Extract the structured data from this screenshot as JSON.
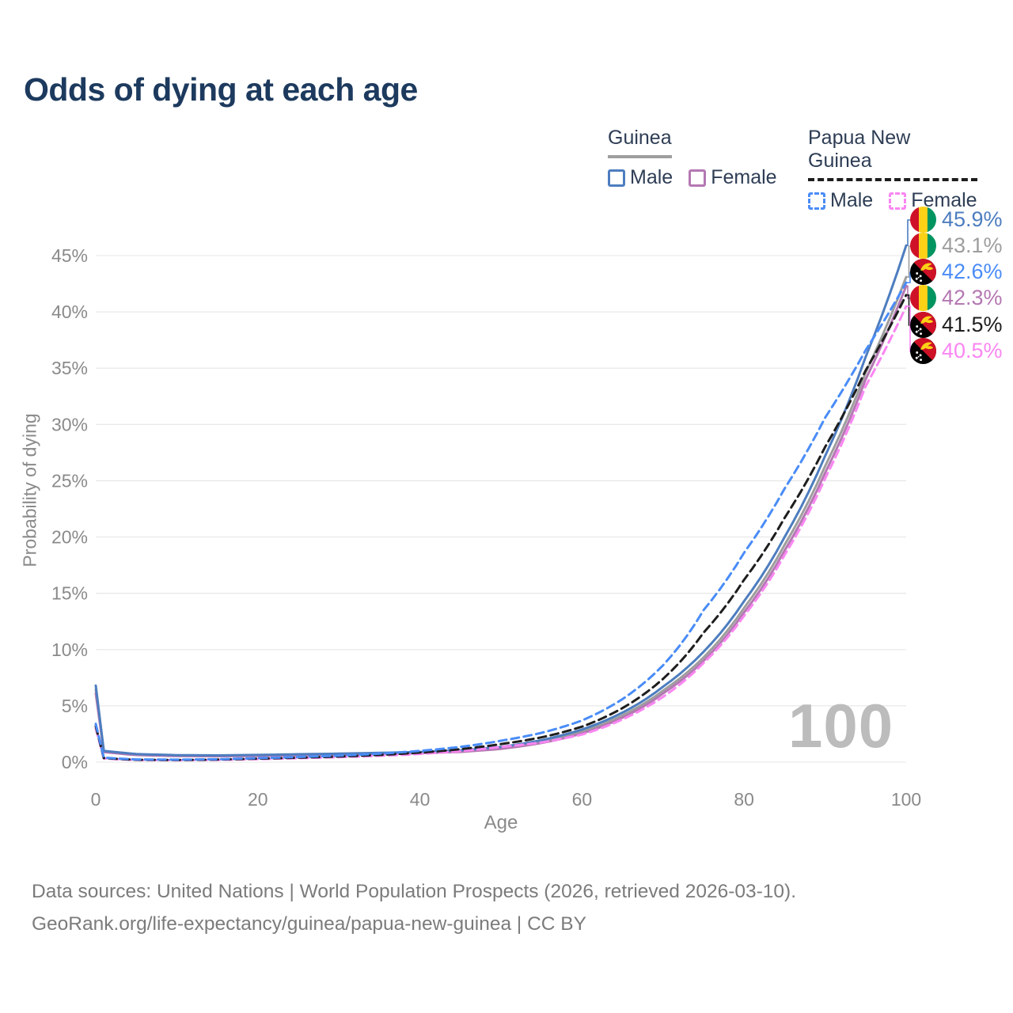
{
  "title": "Odds of dying at each age",
  "watermark": "100",
  "legend": {
    "groups": [
      {
        "label": "Guinea",
        "underline_color": "#9e9e9e",
        "underline_style": "solid",
        "items": [
          {
            "label": "Male",
            "color": "#4d7dbf",
            "dashed": false
          },
          {
            "label": "Female",
            "color": "#b478b2",
            "dashed": false
          }
        ]
      },
      {
        "label": "Papua New Guinea",
        "underline_color": "#1e1e1e",
        "underline_style": "dashed",
        "items": [
          {
            "label": "Male",
            "color": "#4a8cf7",
            "dashed": true
          },
          {
            "label": "Female",
            "color": "#fa86f2",
            "dashed": true
          }
        ]
      }
    ]
  },
  "footer": {
    "line1": "Data sources: United Nations | World Population Prospects (2026, retrieved 2026-03-10).",
    "line2": "GeoRank.org/life-expectancy/guinea/papua-new-guinea | CC BY"
  },
  "chart_data": {
    "type": "line",
    "title": "Odds of dying at each age",
    "xlabel": "Age",
    "ylabel": "Probability of dying",
    "xlim": [
      0,
      100
    ],
    "ylim": [
      0,
      48
    ],
    "grid": true,
    "x_ticks": [
      0,
      20,
      40,
      60,
      80,
      100
    ],
    "y_ticks": [
      {
        "value": 0,
        "label": "0%"
      },
      {
        "value": 5,
        "label": "5%"
      },
      {
        "value": 10,
        "label": "10%"
      },
      {
        "value": 15,
        "label": "15%"
      },
      {
        "value": 20,
        "label": "20%"
      },
      {
        "value": 25,
        "label": "25%"
      },
      {
        "value": 30,
        "label": "30%"
      },
      {
        "value": 35,
        "label": "35%"
      },
      {
        "value": 40,
        "label": "40%"
      },
      {
        "value": 45,
        "label": "45%"
      }
    ],
    "series": [
      {
        "name": "Guinea Male",
        "country": "Guinea",
        "flag": "guinea",
        "color": "#4d7dbf",
        "dashed": false,
        "end_value_pct": 45.9,
        "end_label": "45.9%",
        "points": [
          [
            0,
            6.8
          ],
          [
            1,
            1.0
          ],
          [
            5,
            0.72
          ],
          [
            10,
            0.62
          ],
          [
            15,
            0.6
          ],
          [
            20,
            0.64
          ],
          [
            25,
            0.7
          ],
          [
            30,
            0.75
          ],
          [
            35,
            0.82
          ],
          [
            40,
            0.9
          ],
          [
            45,
            1.05
          ],
          [
            50,
            1.35
          ],
          [
            55,
            1.95
          ],
          [
            60,
            2.9
          ],
          [
            65,
            4.4
          ],
          [
            70,
            6.7
          ],
          [
            75,
            9.8
          ],
          [
            80,
            14.3
          ],
          [
            85,
            20.0
          ],
          [
            90,
            27.2
          ],
          [
            95,
            36.0
          ],
          [
            100,
            45.9
          ]
        ]
      },
      {
        "name": "Guinea",
        "country": "Guinea",
        "flag": "guinea",
        "color": "#9e9e9e",
        "dashed": false,
        "end_value_pct": 43.1,
        "end_label": "43.1%",
        "points": [
          [
            0,
            6.45
          ],
          [
            1,
            0.95
          ],
          [
            5,
            0.68
          ],
          [
            10,
            0.58
          ],
          [
            15,
            0.56
          ],
          [
            20,
            0.6
          ],
          [
            25,
            0.65
          ],
          [
            30,
            0.7
          ],
          [
            35,
            0.77
          ],
          [
            40,
            0.85
          ],
          [
            45,
            0.98
          ],
          [
            50,
            1.27
          ],
          [
            55,
            1.82
          ],
          [
            60,
            2.7
          ],
          [
            65,
            4.15
          ],
          [
            70,
            6.35
          ],
          [
            75,
            9.3
          ],
          [
            80,
            13.7
          ],
          [
            85,
            19.3
          ],
          [
            90,
            26.3
          ],
          [
            95,
            34.6
          ],
          [
            100,
            43.1
          ]
        ]
      },
      {
        "name": "Papua New Guinea Male",
        "country": "Papua New Guinea",
        "flag": "png",
        "color": "#4a8cf7",
        "dashed": true,
        "end_value_pct": 42.6,
        "end_label": "42.6%",
        "points": [
          [
            0,
            3.4
          ],
          [
            1,
            0.4
          ],
          [
            5,
            0.24
          ],
          [
            10,
            0.22
          ],
          [
            15,
            0.26
          ],
          [
            20,
            0.36
          ],
          [
            25,
            0.46
          ],
          [
            30,
            0.58
          ],
          [
            35,
            0.75
          ],
          [
            40,
            1.0
          ],
          [
            45,
            1.35
          ],
          [
            50,
            1.9
          ],
          [
            55,
            2.6
          ],
          [
            60,
            3.7
          ],
          [
            65,
            5.6
          ],
          [
            70,
            8.6
          ],
          [
            75,
            13.5
          ],
          [
            80,
            18.6
          ],
          [
            85,
            24.3
          ],
          [
            90,
            30.6
          ],
          [
            95,
            36.6
          ],
          [
            100,
            42.6
          ]
        ]
      },
      {
        "name": "Guinea Female",
        "country": "Guinea",
        "flag": "guinea",
        "color": "#b478b2",
        "dashed": false,
        "end_value_pct": 42.3,
        "end_label": "42.3%",
        "points": [
          [
            0,
            6.1
          ],
          [
            1,
            0.9
          ],
          [
            5,
            0.63
          ],
          [
            10,
            0.54
          ],
          [
            15,
            0.52
          ],
          [
            20,
            0.55
          ],
          [
            25,
            0.6
          ],
          [
            30,
            0.65
          ],
          [
            35,
            0.71
          ],
          [
            40,
            0.79
          ],
          [
            45,
            0.91
          ],
          [
            50,
            1.18
          ],
          [
            55,
            1.7
          ],
          [
            60,
            2.55
          ],
          [
            65,
            3.95
          ],
          [
            70,
            6.1
          ],
          [
            75,
            9.0
          ],
          [
            80,
            13.3
          ],
          [
            85,
            18.8
          ],
          [
            90,
            25.7
          ],
          [
            95,
            34.0
          ],
          [
            100,
            42.3
          ]
        ]
      },
      {
        "name": "Papua New Guinea",
        "country": "Papua New Guinea",
        "flag": "png",
        "color": "#1e1e1e",
        "dashed": true,
        "end_value_pct": 41.5,
        "end_label": "41.5%",
        "points": [
          [
            0,
            3.2
          ],
          [
            1,
            0.36
          ],
          [
            5,
            0.21
          ],
          [
            10,
            0.19
          ],
          [
            15,
            0.23
          ],
          [
            20,
            0.31
          ],
          [
            25,
            0.4
          ],
          [
            30,
            0.5
          ],
          [
            35,
            0.64
          ],
          [
            40,
            0.85
          ],
          [
            45,
            1.15
          ],
          [
            50,
            1.6
          ],
          [
            55,
            2.2
          ],
          [
            60,
            3.15
          ],
          [
            65,
            4.8
          ],
          [
            70,
            7.4
          ],
          [
            75,
            11.5
          ],
          [
            80,
            16.2
          ],
          [
            85,
            21.7
          ],
          [
            90,
            28.0
          ],
          [
            95,
            34.8
          ],
          [
            100,
            41.5
          ]
        ]
      },
      {
        "name": "Papua New Guinea Female",
        "country": "Papua New Guinea",
        "flag": "png",
        "color": "#fa86f2",
        "dashed": true,
        "end_value_pct": 40.5,
        "end_label": "40.5%",
        "points": [
          [
            0,
            3.0
          ],
          [
            1,
            0.32
          ],
          [
            5,
            0.19
          ],
          [
            10,
            0.17
          ],
          [
            15,
            0.2
          ],
          [
            20,
            0.27
          ],
          [
            25,
            0.35
          ],
          [
            30,
            0.44
          ],
          [
            35,
            0.56
          ],
          [
            40,
            0.73
          ],
          [
            45,
            0.98
          ],
          [
            50,
            1.35
          ],
          [
            55,
            1.75
          ],
          [
            60,
            2.45
          ],
          [
            65,
            3.8
          ],
          [
            70,
            5.8
          ],
          [
            75,
            8.8
          ],
          [
            80,
            13.0
          ],
          [
            85,
            18.4
          ],
          [
            90,
            25.2
          ],
          [
            95,
            33.4
          ],
          [
            100,
            40.5
          ]
        ]
      }
    ],
    "legend_position": "top-right",
    "flag_colors": {
      "guinea": {
        "red": "#CE1126",
        "yellow": "#FCD116",
        "green": "#009460"
      },
      "png": {
        "red": "#CE1126",
        "black": "#000000",
        "yellow": "#FCD116",
        "white": "#ffffff"
      }
    }
  }
}
